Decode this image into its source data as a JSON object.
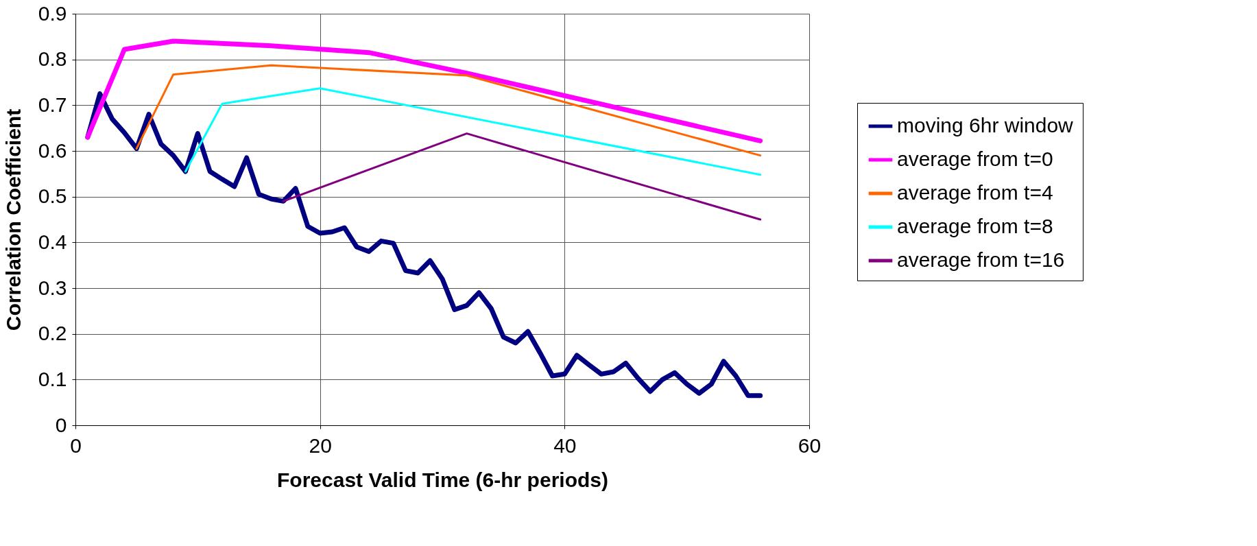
{
  "chart_data": {
    "type": "line",
    "xlabel": "Forecast Valid Time (6-hr periods)",
    "ylabel": "Correlation Coefficient",
    "xlim": [
      0,
      60
    ],
    "xticks": [
      0,
      20,
      40,
      60
    ],
    "ylim": [
      0,
      0.9
    ],
    "yticks": [
      {
        "value": 0,
        "label": "0"
      },
      0.1,
      0.2,
      0.3,
      0.4,
      0.5,
      0.6,
      0.7,
      0.8,
      0.9
    ],
    "grid": true,
    "legend": "right",
    "marker": "none",
    "line_style": "solid",
    "series": [
      {
        "name": "moving 6hr window",
        "color": "#000080",
        "x": [
          1,
          2,
          3,
          4,
          5,
          6,
          7,
          8,
          9,
          10,
          11,
          12,
          13,
          14,
          15,
          16,
          17,
          18,
          19,
          20,
          21,
          22,
          23,
          24,
          25,
          26,
          27,
          28,
          29,
          30,
          31,
          32,
          33,
          34,
          35,
          36,
          37,
          38,
          39,
          40,
          41,
          42,
          43,
          44,
          45,
          46,
          47,
          48,
          49,
          50,
          51,
          52,
          53,
          54,
          55,
          56
        ],
        "values": [
          0.63,
          0.725,
          0.67,
          0.64,
          0.605,
          0.68,
          0.615,
          0.59,
          0.555,
          0.638,
          0.555,
          0.538,
          0.522,
          0.585,
          0.505,
          0.495,
          0.49,
          0.518,
          0.435,
          0.42,
          0.423,
          0.432,
          0.39,
          0.38,
          0.403,
          0.398,
          0.338,
          0.333,
          0.36,
          0.32,
          0.253,
          0.262,
          0.29,
          0.255,
          0.193,
          0.18,
          0.205,
          0.158,
          0.108,
          0.112,
          0.153,
          0.132,
          0.112,
          0.117,
          0.136,
          0.103,
          0.074,
          0.1,
          0.115,
          0.09,
          0.07,
          0.09,
          0.14,
          0.108,
          0.065,
          0.065
        ]
      },
      {
        "name": "average from t=0",
        "color": "#ff00ff",
        "x": [
          1,
          4,
          8,
          16,
          24,
          32,
          56
        ],
        "values": [
          0.63,
          0.822,
          0.84,
          0.83,
          0.815,
          0.77,
          0.622
        ]
      },
      {
        "name": "average from t=4",
        "color": "#ff6600",
        "x": [
          5,
          8,
          16,
          32,
          56
        ],
        "values": [
          0.605,
          0.767,
          0.787,
          0.765,
          0.59
        ]
      },
      {
        "name": "average from t=8",
        "color": "#00ffff",
        "x": [
          9,
          12,
          20,
          56
        ],
        "values": [
          0.555,
          0.703,
          0.737,
          0.548
        ]
      },
      {
        "name": "average from t=16",
        "color": "#800080",
        "x": [
          17,
          32,
          56
        ],
        "values": [
          0.49,
          0.638,
          0.45
        ]
      }
    ]
  }
}
